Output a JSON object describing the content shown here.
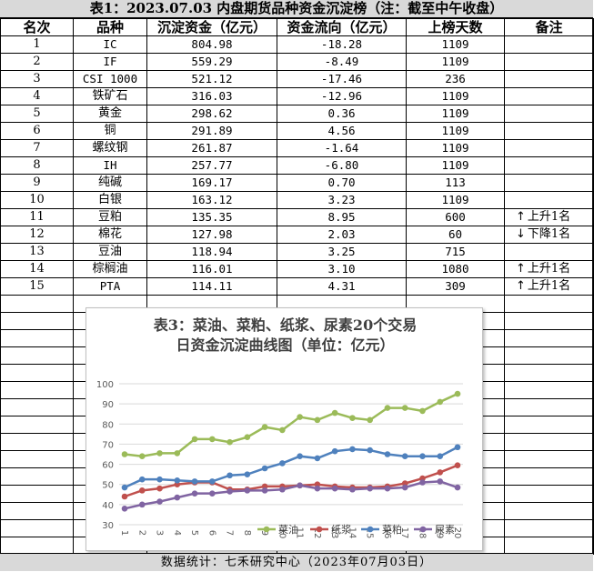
{
  "table": {
    "title": "表1：2023.07.03 内盘期货品种资金沉淀榜（注：截至中午收盘）",
    "headers": [
      "名次",
      "品种",
      "沉淀资金（亿元）",
      "资金流向（亿元）",
      "上榜天数",
      "备注"
    ],
    "rows": [
      {
        "rank": "1",
        "name": "IC",
        "sediment": "804.98",
        "flow": "-18.28",
        "days": "1109",
        "note": ""
      },
      {
        "rank": "2",
        "name": "IF",
        "sediment": "559.29",
        "flow": "-8.49",
        "days": "1109",
        "note": ""
      },
      {
        "rank": "3",
        "name": "CSI 1000",
        "sediment": "521.12",
        "flow": "-17.46",
        "days": "236",
        "note": ""
      },
      {
        "rank": "4",
        "name": "铁矿石",
        "sediment": "316.03",
        "flow": "-12.96",
        "days": "1109",
        "note": ""
      },
      {
        "rank": "5",
        "name": "黄金",
        "sediment": "298.62",
        "flow": "0.36",
        "days": "1109",
        "note": ""
      },
      {
        "rank": "6",
        "name": "铜",
        "sediment": "291.89",
        "flow": "4.56",
        "days": "1109",
        "note": ""
      },
      {
        "rank": "7",
        "name": "螺纹钢",
        "sediment": "261.87",
        "flow": "-1.64",
        "days": "1109",
        "note": ""
      },
      {
        "rank": "8",
        "name": "IH",
        "sediment": "257.77",
        "flow": "-6.80",
        "days": "1109",
        "note": ""
      },
      {
        "rank": "9",
        "name": "纯碱",
        "sediment": "169.17",
        "flow": "0.70",
        "days": "113",
        "note": ""
      },
      {
        "rank": "10",
        "name": "白银",
        "sediment": "163.12",
        "flow": "3.23",
        "days": "1109",
        "note": ""
      },
      {
        "rank": "11",
        "name": "豆粕",
        "sediment": "135.35",
        "flow": "8.95",
        "days": "600",
        "note": "上升1名",
        "arrow": "↑"
      },
      {
        "rank": "12",
        "name": "棉花",
        "sediment": "127.98",
        "flow": "2.03",
        "days": "60",
        "note": "下降1名",
        "arrow": "↓"
      },
      {
        "rank": "13",
        "name": "豆油",
        "sediment": "118.94",
        "flow": "3.25",
        "days": "715",
        "note": ""
      },
      {
        "rank": "14",
        "name": "棕榈油",
        "sediment": "116.01",
        "flow": "3.10",
        "days": "1080",
        "note": "上升1名",
        "arrow": "↑"
      },
      {
        "rank": "15",
        "name": "PTA",
        "sediment": "114.11",
        "flow": "4.31",
        "days": "309",
        "note": "上升1名",
        "arrow": "↑"
      }
    ]
  },
  "footer": "数据统计：七禾研究中心（2023年07月03日）",
  "chart_data": {
    "type": "line",
    "title": "表3：菜油、菜粕、纸浆、尿素20个交易日资金沉淀曲线图（单位：亿元）",
    "title_lines": [
      "表3：菜油、菜粕、纸浆、尿素20个交易",
      "日资金沉淀曲线图（单位：亿元）"
    ],
    "x": [
      "1",
      "2",
      "3",
      "4",
      "5",
      "6",
      "7",
      "8",
      "9",
      "10",
      "11",
      "12",
      "13",
      "14",
      "15",
      "16",
      "17",
      "18",
      "19",
      "20"
    ],
    "ylim": [
      30,
      100
    ],
    "yticks": [
      30,
      40,
      50,
      60,
      70,
      80,
      90,
      100
    ],
    "grid": true,
    "legend": "bottom",
    "series": [
      {
        "name": "菜油",
        "color": "#9bbb59",
        "values": [
          65,
          64,
          65.5,
          65.5,
          72.5,
          72.5,
          71,
          73.5,
          78.5,
          77,
          83.5,
          82,
          85.5,
          83,
          82,
          88,
          88,
          86.5,
          91,
          95
        ]
      },
      {
        "name": "纸浆",
        "color": "#c0504d",
        "values": [
          44,
          47,
          48,
          50,
          51,
          51,
          47.5,
          47.5,
          49,
          49,
          49.5,
          50,
          49,
          48.5,
          48.5,
          49,
          50.5,
          53,
          56,
          59.5
        ]
      },
      {
        "name": "菜粕",
        "color": "#4f81bd",
        "values": [
          48.5,
          52.5,
          52.5,
          52,
          51.5,
          51.5,
          54.5,
          55,
          58,
          60.5,
          64,
          63,
          66.5,
          67.5,
          67,
          65,
          64,
          64,
          64,
          68.5
        ]
      },
      {
        "name": "尿素",
        "color": "#8064a2",
        "values": [
          38,
          40,
          41.5,
          43.5,
          45.5,
          45.5,
          46.5,
          47,
          47,
          47.5,
          49.5,
          48,
          48,
          47.5,
          48,
          48,
          48.5,
          51,
          51.5,
          48.5
        ]
      }
    ]
  }
}
